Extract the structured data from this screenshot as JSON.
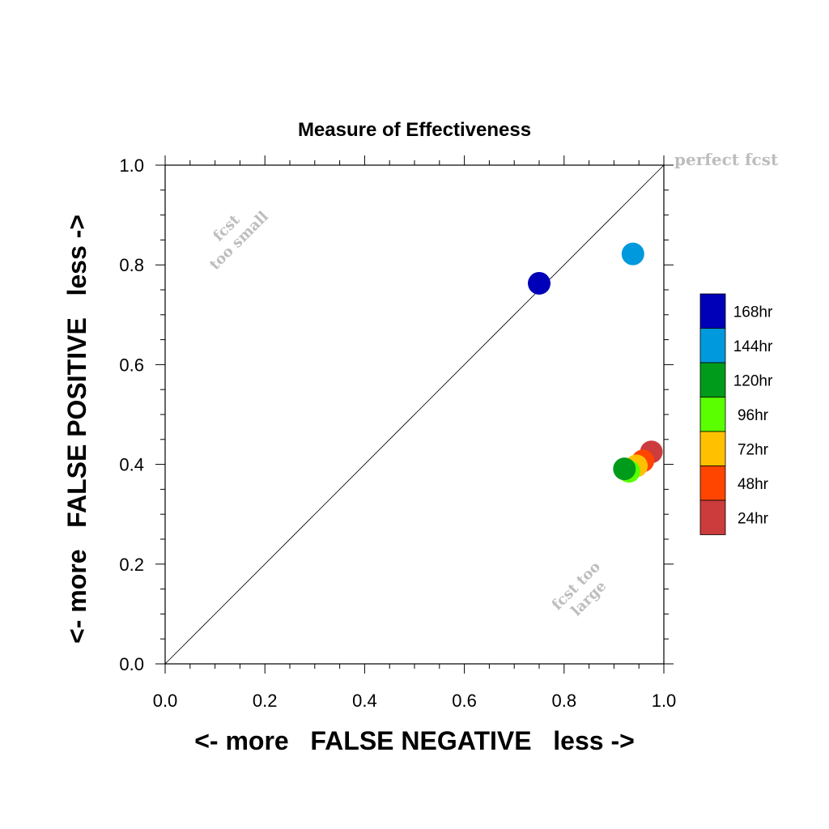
{
  "chart_data": {
    "type": "scatter",
    "title": "Measure of Effectiveness",
    "xlabel": "<- more   FALSE NEGATIVE   less ->",
    "ylabel": "<- more   FALSE POSITIVE   less ->",
    "xlim": [
      0,
      1
    ],
    "ylim": [
      0,
      1
    ],
    "xticks": [
      "0.0",
      "0.2",
      "0.4",
      "0.6",
      "0.8",
      "1.0"
    ],
    "yticks": [
      "0.0",
      "0.2",
      "0.4",
      "0.6",
      "0.8",
      "1.0"
    ],
    "grid": false,
    "diagonal_reference_line": true,
    "annotations": {
      "perfect": "perfect fcst",
      "small_line1": "fcst",
      "small_line2": "too small",
      "large_line1": "fcst too",
      "large_line2": "large"
    },
    "legend_position": "right",
    "series": [
      {
        "name": "24hr",
        "color": "#cc3c3c",
        "x": 0.975,
        "y": 0.425
      },
      {
        "name": "48hr",
        "color": "#ff4500",
        "x": 0.958,
        "y": 0.407
      },
      {
        "name": "72hr",
        "color": "#ffc000",
        "x": 0.945,
        "y": 0.397
      },
      {
        "name": "96hr",
        "color": "#5aff00",
        "x": 0.93,
        "y": 0.386
      },
      {
        "name": "120hr",
        "color": "#009b1a",
        "x": 0.921,
        "y": 0.391
      },
      {
        "name": "144hr",
        "color": "#0099dd",
        "x": 0.938,
        "y": 0.822
      },
      {
        "name": "168hr",
        "color": "#0000b8",
        "x": 0.75,
        "y": 0.763
      }
    ],
    "legend_order": [
      "168hr",
      "144hr",
      "120hr",
      "96hr",
      "72hr",
      "48hr",
      "24hr"
    ]
  }
}
